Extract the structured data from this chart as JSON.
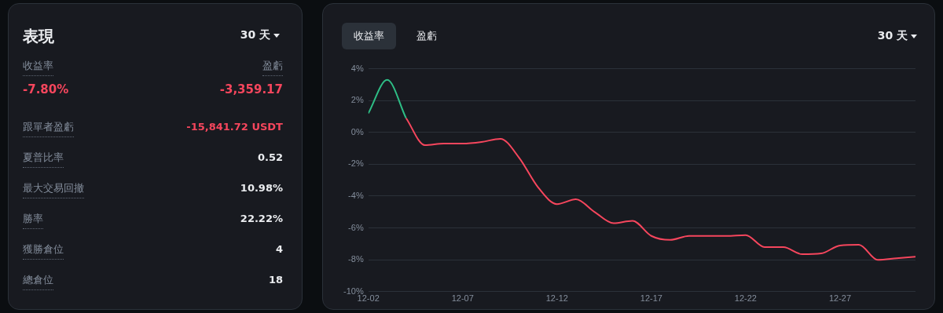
{
  "chart_data": [
    {
      "type": "other",
      "title": "表現",
      "annotations": [
        "30 天",
        "收益率",
        "盈虧",
        "-7.80%",
        "-3,359.17",
        "跟單者盈虧",
        "-15,841.72 USDT",
        "夏普比率",
        "0.52",
        "最大交易回撤",
        "10.98%",
        "勝率",
        "22.22%",
        "獲勝倉位",
        "4",
        "總倉位",
        "18"
      ]
    },
    {
      "type": "line",
      "annotations": [
        "收益率",
        "盈虧",
        "30 天"
      ],
      "x": [
        "--12-02",
        "--12-03",
        "--12-04",
        "--12-05",
        "--12-06",
        "--12-07",
        "--12-08",
        "--12-09",
        "--12-10",
        "--12-11",
        "--12-12",
        "--12-13",
        "--12-14",
        "--12-15",
        "--12-16",
        "--12-17",
        "--12-18",
        "--12-19",
        "--12-20",
        "--12-21",
        "--12-22",
        "--12-23",
        "--12-24",
        "--12-25",
        "--12-26",
        "--12-27",
        "--12-28",
        "--12-29",
        "--12-30",
        "--12-31"
      ],
      "series": [
        {
          "color": "#2ebd85",
          "values": [
            1.2,
            3.3,
            0.9,
            null,
            null,
            null,
            null,
            null,
            null,
            null,
            null,
            null,
            null,
            null,
            null,
            null,
            null,
            null,
            null,
            null,
            null,
            null,
            null,
            null,
            null,
            null,
            null,
            null,
            null,
            null
          ]
        },
        {
          "color": "#f6465d",
          "values": [
            null,
            null,
            0.9,
            -0.8,
            -0.7,
            -0.7,
            -0.6,
            -0.4,
            -1.6,
            -3.45,
            -4.5,
            -4.2,
            -5.0,
            -5.7,
            -5.55,
            -6.5,
            -6.75,
            -6.5,
            -6.5,
            -6.5,
            -6.45,
            -7.2,
            -7.2,
            -7.65,
            -7.6,
            -7.1,
            -7.05,
            -8.0,
            -7.9,
            -7.8
          ]
        }
      ],
      "ylim": [
        -10,
        4
      ],
      "yticks": [
        {
          "value": -10,
          "label": "-10%"
        },
        {
          "value": -8,
          "label": "-8%"
        },
        {
          "value": -6,
          "label": "-6%"
        },
        {
          "value": -4,
          "label": "-4%"
        },
        {
          "value": -2,
          "label": "-2%"
        },
        {
          "value": 0,
          "label": "0%"
        },
        {
          "value": 2,
          "label": "2%"
        },
        {
          "value": 4,
          "label": "4%"
        }
      ],
      "xlim": [
        "--12-02",
        "--12-31"
      ],
      "xticks": [
        {
          "value": "--12-02",
          "label": "12-02"
        },
        {
          "value": "--12-07",
          "label": "12-07"
        },
        {
          "value": "--12-12",
          "label": "12-12"
        },
        {
          "value": "--12-17",
          "label": "12-17"
        },
        {
          "value": "--12-22",
          "label": "12-22"
        },
        {
          "value": "--12-27",
          "label": "12-27"
        }
      ],
      "grid": "y",
      "legend": false,
      "marker": "none",
      "line_style": "solid"
    }
  ]
}
